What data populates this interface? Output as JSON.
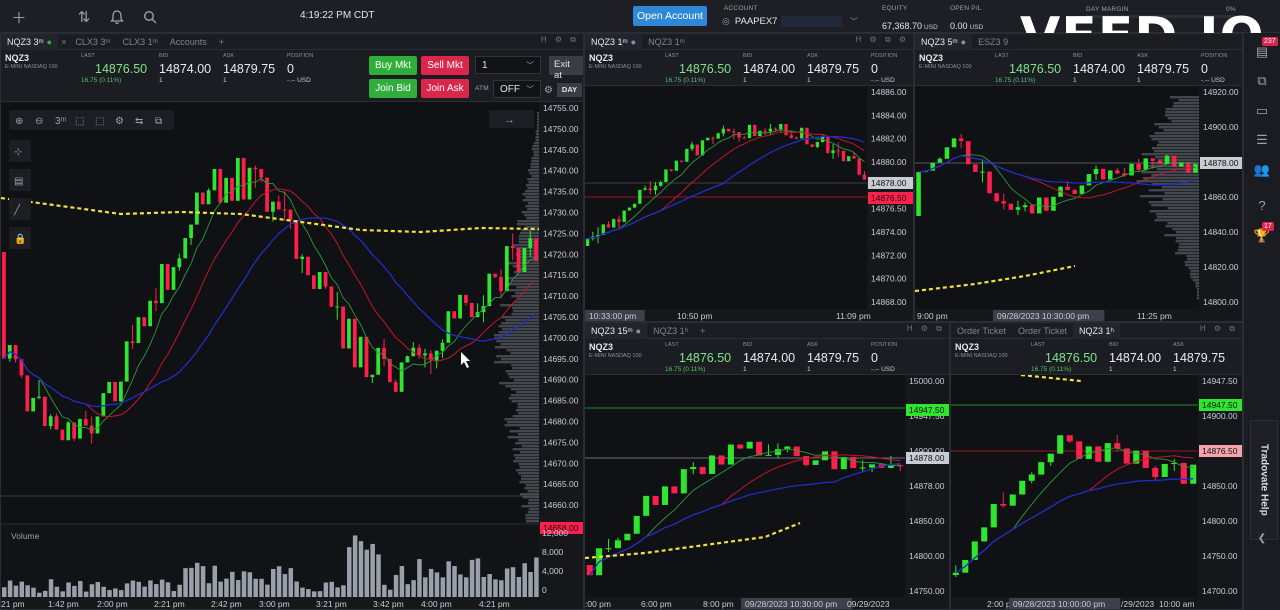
{
  "topbar": {
    "clock": "4:19:22 PM CDT",
    "open_account_label": "Open Account",
    "account_label": "ACCOUNT",
    "account_value": "PAAPEX7",
    "equity_label": "EQUITY",
    "equity_value": "67,368.70",
    "equity_unit": "USD",
    "open_pl_label": "OPEN P/L",
    "open_pl_value": "0.00",
    "open_pl_unit": "USD",
    "day_margin_label": "DAY MARGIN",
    "day_margin_pct": "0%",
    "watermark": "VEED.IO"
  },
  "rightrail": {
    "notifications_badge": "237",
    "trophy_badge": "17",
    "help_label": "Tradovate Help"
  },
  "quote_labels": {
    "last": "LAST",
    "bid": "BID",
    "ask": "ASK",
    "position": "POSITION"
  },
  "quote": {
    "symbol": "NQZ3",
    "name": "E-MINI NASDAQ 100",
    "last": "14876.50",
    "change": "16.75 (0.11%)",
    "last_size": "1",
    "bid": "14874.00",
    "bid_size": "1",
    "ask": "14879.75",
    "ask_size": "1",
    "position": "0",
    "position_sub": "-.-- USD"
  },
  "main_panel": {
    "tabs": [
      "NQZ3 3ᵐ",
      "CLX3 3ᵐ",
      "CLX3 1ᵐ",
      "Accounts"
    ],
    "add_tab": "+",
    "ctrls": "H ⚙ ⧉",
    "buy_mkt": "Buy Mkt",
    "sell_mkt": "Sell Mkt",
    "join_bid": "Join Bid",
    "join_ask": "Join Ask",
    "qty": "1",
    "atm_label": "ATM",
    "atm_value": "OFF",
    "exit_at": "Exit at",
    "day": "DAY",
    "toolbar_tf": "3ᵐ",
    "volume_label": "Volume",
    "price_axis": [
      "14755.00",
      "14750.00",
      "14745.00",
      "14740.00",
      "14735.00",
      "14730.00",
      "14725.00",
      "14720.00",
      "14715.00",
      "14710.00",
      "14705.00",
      "14700.00",
      "14695.00",
      "14690.00",
      "14685.00",
      "14680.00",
      "14675.00",
      "14670.00",
      "14665.00",
      "14660.00",
      "14655.00"
    ],
    "price_tag_red": "14658.00",
    "volume_axis": [
      "12,000",
      "8,000",
      "4,000",
      "0"
    ],
    "time_axis": [
      "21 pm",
      "1:42 pm",
      "2:00 pm",
      "2:21 pm",
      "2:42 pm",
      "3:00 pm",
      "3:21 pm",
      "3:42 pm",
      "4:00 pm",
      "4:21 pm"
    ]
  },
  "panel_tr1": {
    "tabs": [
      "NQZ3 1ᵐ",
      "NQZ3 1ᵐ"
    ],
    "ctrls": "H ⚙ ⧉ ⚙",
    "price_axis": [
      "14886.00",
      "14884.00",
      "14882.00",
      "14880.00",
      "14878.00",
      "14876.50",
      "14874.00",
      "14872.00",
      "14870.00",
      "14868.00"
    ],
    "time_axis": [
      "10:33:00 pm",
      "10:50 pm",
      "11:09 pm"
    ]
  },
  "panel_tr2": {
    "tabs": [
      "NQZ3 5ᵐ",
      "ESZ3 9"
    ],
    "price_axis": [
      "14920.00",
      "14900.00",
      "14878.00",
      "14860.00",
      "14840.00",
      "14820.00",
      "14800.00"
    ],
    "time_axis": [
      "9:00 pm",
      "09/28/2023 10:30:00 pm",
      "11:25 pm"
    ]
  },
  "panel_br1": {
    "tabs": [
      "NQZ3 15ᵐ",
      "NQZ3 1ʰ",
      "+"
    ],
    "ctrls": "H ⚙ ⧉",
    "price_axis": [
      "15000.00",
      "14947.50",
      "14900.00",
      "14878.00",
      "14850.00",
      "14800.00",
      "14750.00"
    ],
    "time_axis": [
      ":00 pm",
      "6:00 pm",
      "8:00 pm",
      "09/28/2023 10:30:00 pm",
      "09/29/2023"
    ]
  },
  "panel_br2": {
    "tabs": [
      "Order Ticket",
      "Order Ticket",
      "NQZ3 1ʰ"
    ],
    "ctrls": "H ⚙ ⧉",
    "price_axis": [
      "14947.50",
      "14900.00",
      "14876.50",
      "14850.00",
      "14800.00",
      "14750.00",
      "14700.00"
    ],
    "time_axis": [
      "2:00 pm",
      "09/28/2023 10:00:00 pm",
      "/29/2023",
      "10:00 am"
    ]
  },
  "colors": {
    "bull": "#2ee62e",
    "bear": "#ff1f4b",
    "yellow_dash": "#f2e23a",
    "blue_ma": "#1f2ec8",
    "red_ma": "#c8142d",
    "green_ma": "#2c9a3a",
    "accent": "#2f88d6"
  }
}
